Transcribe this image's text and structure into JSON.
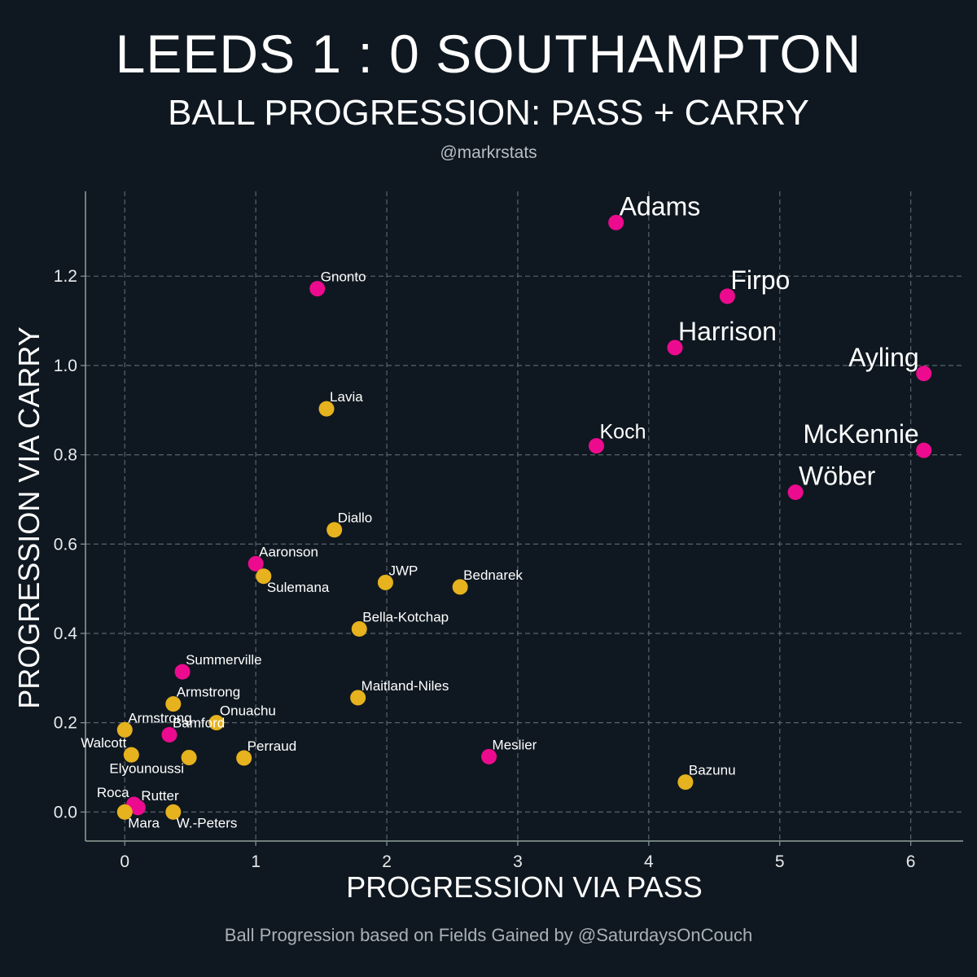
{
  "title": "LEEDS 1 : 0 SOUTHAMPTON",
  "subtitle": "BALL PROGRESSION: PASS + CARRY",
  "handle": "@markrstats",
  "footer": "Ball Progression based on Fields Gained by @SaturdaysOnCouch",
  "chart_data": {
    "type": "scatter",
    "xlabel": "PROGRESSION VIA PASS",
    "ylabel": "PROGRESSION VIA CARRY",
    "xlim": [
      -0.3,
      6.4
    ],
    "ylim": [
      -0.065,
      1.39
    ],
    "xticks": [
      0,
      1,
      2,
      3,
      4,
      5,
      6
    ],
    "yticks": [
      0.0,
      0.2,
      0.4,
      0.6,
      0.8,
      1.0,
      1.2
    ],
    "xtick_labels": [
      "0",
      "1",
      "2",
      "3",
      "4",
      "5",
      "6"
    ],
    "ytick_labels": [
      "0.0",
      "0.2",
      "0.4",
      "0.6",
      "0.8",
      "1.0",
      "1.2"
    ],
    "grid": true,
    "colors": {
      "Leeds": "#ec0b8e",
      "Southampton": "#e6b21d"
    },
    "series": [
      {
        "name": "Leeds",
        "points": [
          {
            "label": "Adams",
            "x": 3.75,
            "y": 1.32,
            "size": "large"
          },
          {
            "label": "Firpo",
            "x": 4.6,
            "y": 1.155,
            "size": "large"
          },
          {
            "label": "Harrison",
            "x": 4.2,
            "y": 1.04,
            "size": "large"
          },
          {
            "label": "Ayling",
            "x": 6.1,
            "y": 0.982,
            "size": "large",
            "align": "left"
          },
          {
            "label": "McKennie",
            "x": 6.1,
            "y": 0.81,
            "size": "large",
            "align": "left"
          },
          {
            "label": "Wöber",
            "x": 5.12,
            "y": 0.716,
            "size": "large"
          },
          {
            "label": "Koch",
            "x": 3.6,
            "y": 0.82,
            "size": "medium"
          },
          {
            "label": "Gnonto",
            "x": 1.47,
            "y": 1.172,
            "size": "small"
          },
          {
            "label": "Aaronson",
            "x": 1.0,
            "y": 0.556,
            "size": "small"
          },
          {
            "label": "Summerville",
            "x": 0.44,
            "y": 0.314,
            "size": "small"
          },
          {
            "label": "Bamford",
            "x": 0.34,
            "y": 0.173,
            "size": "small"
          },
          {
            "label": "Meslier",
            "x": 2.78,
            "y": 0.124,
            "size": "small"
          },
          {
            "label": "Rutter",
            "x": 0.1,
            "y": 0.01,
            "size": "small"
          },
          {
            "label": "Roca",
            "x": 0.07,
            "y": 0.017,
            "size": "small",
            "align": "left"
          }
        ]
      },
      {
        "name": "Southampton",
        "points": [
          {
            "label": "Lavia",
            "x": 1.54,
            "y": 0.903,
            "size": "small"
          },
          {
            "label": "Diallo",
            "x": 1.6,
            "y": 0.632,
            "size": "small"
          },
          {
            "label": "Sulemana",
            "x": 1.06,
            "y": 0.528,
            "size": "small",
            "below": true
          },
          {
            "label": "JWP",
            "x": 1.99,
            "y": 0.514,
            "size": "small"
          },
          {
            "label": "Bednarek",
            "x": 2.56,
            "y": 0.504,
            "size": "small"
          },
          {
            "label": "Bella-Kotchap",
            "x": 1.79,
            "y": 0.41,
            "size": "small"
          },
          {
            "label": "Maitland-Niles",
            "x": 1.78,
            "y": 0.256,
            "size": "small"
          },
          {
            "label": "Armstrong",
            "x": 0.37,
            "y": 0.242,
            "size": "small"
          },
          {
            "label": "Onuachu",
            "x": 0.7,
            "y": 0.2,
            "size": "small"
          },
          {
            "label": "Armstrong",
            "x": 0.0,
            "y": 0.184,
            "size": "small"
          },
          {
            "label": "Walcott",
            "x": 0.05,
            "y": 0.128,
            "size": "small",
            "align": "left"
          },
          {
            "label": "Elyounoussi",
            "x": 0.49,
            "y": 0.122,
            "size": "small",
            "align": "left",
            "below": true
          },
          {
            "label": "Perraud",
            "x": 0.91,
            "y": 0.121,
            "size": "small"
          },
          {
            "label": "Bazunu",
            "x": 4.28,
            "y": 0.067,
            "size": "small"
          },
          {
            "label": "Mara",
            "x": 0.0,
            "y": 0.0,
            "size": "small",
            "below": true
          },
          {
            "label": "W.-Peters",
            "x": 0.37,
            "y": 0.0,
            "size": "small",
            "below": true
          }
        ]
      }
    ]
  }
}
